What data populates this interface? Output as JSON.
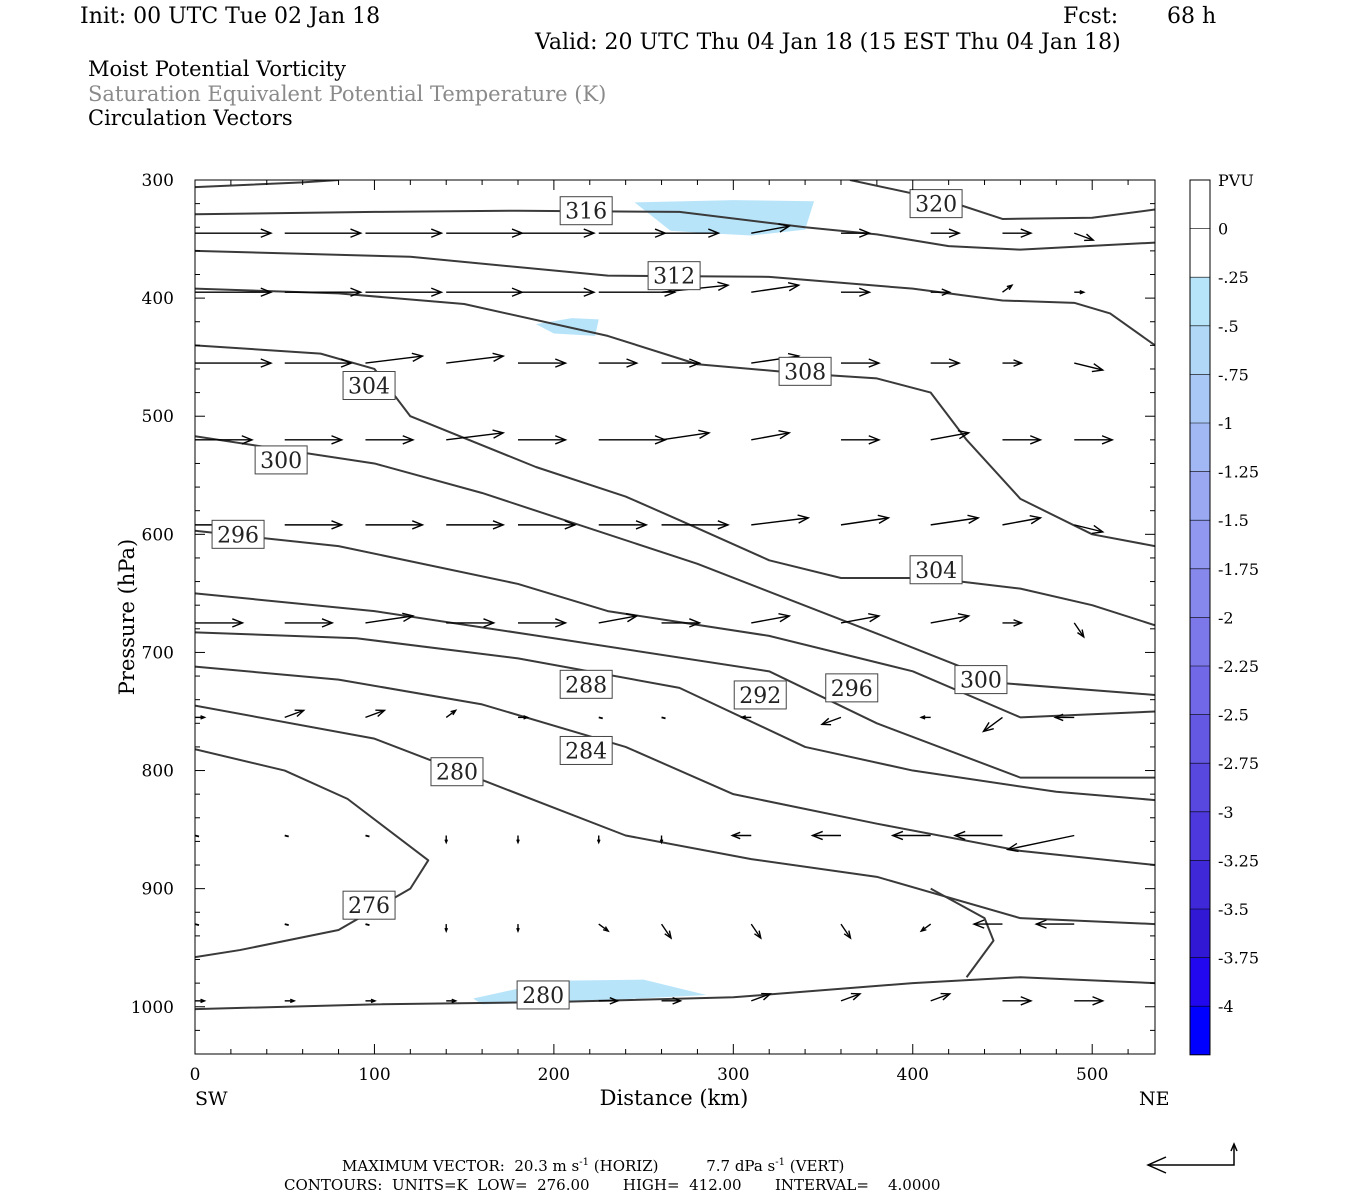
{
  "header": {
    "init": "Init: 00 UTC Tue 02 Jan 18",
    "fcst_label": "Fcst:",
    "fcst_value": "68 h",
    "valid": "Valid: 20 UTC Thu 04 Jan 18 (15 EST Thu 04 Jan 18)"
  },
  "titles": {
    "line1": "Moist Potential Vorticity",
    "line2": "Saturation Equivalent Potential Temperature (K)",
    "line3": "Circulation Vectors"
  },
  "colors": {
    "contour": "#3a3a3a",
    "title_gray": "#8a8a8a",
    "pv_fill": "#b8e4fa"
  },
  "chart_data": {
    "type": "cross-section",
    "xlabel": "Distance (km)",
    "ylabel": "Pressure (hPa)",
    "xlim": [
      0,
      535
    ],
    "ylim": [
      1040,
      300
    ],
    "x_ticks": [
      0,
      100,
      200,
      300,
      400,
      500
    ],
    "y_ticks": [
      300,
      400,
      500,
      600,
      700,
      800,
      900,
      1000
    ],
    "x_end_labels": {
      "left": "SW",
      "right": "NE"
    },
    "colorbar": {
      "unit": "PVU",
      "labels": [
        "0",
        "-.25",
        "-.5",
        "-.75",
        "-1",
        "-1.25",
        "-1.5",
        "-1.75",
        "-2",
        "-2.25",
        "-2.5",
        "-2.75",
        "-3",
        "-3.25",
        "-3.5",
        "-3.75",
        "-4"
      ],
      "colors": [
        "#ffffff",
        "#ffffff",
        "#b8e4fa",
        "#b2d8f8",
        "#aac8f6",
        "#a2b8f4",
        "#9aa8f2",
        "#9098ef",
        "#8688ec",
        "#7c78e9",
        "#7068e6",
        "#6458e3",
        "#5848e0",
        "#4c38dc",
        "#3e28d8",
        "#3018d4",
        "#2208ee",
        "#0000ff"
      ]
    },
    "contour_labels": [
      {
        "text": "316",
        "x": 218,
        "p": 326
      },
      {
        "text": "320",
        "x": 413,
        "p": 320
      },
      {
        "text": "312",
        "x": 267,
        "p": 381
      },
      {
        "text": "308",
        "x": 340,
        "p": 462
      },
      {
        "text": "304",
        "x": 97,
        "p": 474
      },
      {
        "text": "300",
        "x": 48,
        "p": 537
      },
      {
        "text": "296",
        "x": 24,
        "p": 600
      },
      {
        "text": "304",
        "x": 413,
        "p": 630
      },
      {
        "text": "300",
        "x": 438,
        "p": 723
      },
      {
        "text": "296",
        "x": 366,
        "p": 730
      },
      {
        "text": "292",
        "x": 315,
        "p": 736
      },
      {
        "text": "288",
        "x": 218,
        "p": 727
      },
      {
        "text": "284",
        "x": 218,
        "p": 783
      },
      {
        "text": "280",
        "x": 146,
        "p": 801
      },
      {
        "text": "276",
        "x": 97,
        "p": 914
      },
      {
        "text": "280",
        "x": 194,
        "p": 990
      }
    ],
    "contours": [
      [
        [
          0,
          306
        ],
        [
          60,
          302
        ],
        [
          80,
          300
        ]
      ],
      [
        [
          0,
          329
        ],
        [
          100,
          327
        ],
        [
          180,
          326
        ],
        [
          270,
          327
        ],
        [
          340,
          340
        ],
        [
          380,
          346
        ],
        [
          420,
          356
        ],
        [
          460,
          359
        ],
        [
          535,
          353
        ]
      ],
      [
        [
          365,
          300
        ],
        [
          420,
          318
        ],
        [
          450,
          333
        ],
        [
          500,
          332
        ],
        [
          535,
          325
        ]
      ],
      [
        [
          0,
          360
        ],
        [
          120,
          365
        ],
        [
          230,
          381
        ],
        [
          320,
          382
        ],
        [
          400,
          392
        ],
        [
          450,
          402
        ],
        [
          490,
          404
        ],
        [
          510,
          413
        ],
        [
          535,
          440
        ]
      ],
      [
        [
          0,
          392
        ],
        [
          80,
          396
        ],
        [
          150,
          405
        ],
        [
          230,
          432
        ],
        [
          280,
          456
        ],
        [
          340,
          464
        ],
        [
          380,
          468
        ],
        [
          410,
          480
        ],
        [
          430,
          520
        ],
        [
          460,
          570
        ],
        [
          500,
          600
        ],
        [
          535,
          610
        ]
      ],
      [
        [
          0,
          440
        ],
        [
          70,
          447
        ],
        [
          100,
          460
        ],
        [
          120,
          500
        ],
        [
          190,
          543
        ],
        [
          240,
          568
        ],
        [
          270,
          588
        ],
        [
          320,
          622
        ],
        [
          360,
          637
        ],
        [
          410,
          637
        ],
        [
          460,
          646
        ],
        [
          500,
          660
        ],
        [
          535,
          677
        ]
      ],
      [
        [
          0,
          517
        ],
        [
          100,
          540
        ],
        [
          160,
          565
        ],
        [
          280,
          625
        ],
        [
          380,
          684
        ],
        [
          450,
          726
        ],
        [
          535,
          736
        ]
      ],
      [
        [
          0,
          597
        ],
        [
          80,
          610
        ],
        [
          180,
          642
        ],
        [
          230,
          665
        ],
        [
          320,
          686
        ],
        [
          400,
          716
        ],
        [
          460,
          755
        ],
        [
          535,
          750
        ]
      ],
      [
        [
          0,
          650
        ],
        [
          100,
          665
        ],
        [
          200,
          688
        ],
        [
          320,
          716
        ],
        [
          380,
          760
        ],
        [
          460,
          806
        ],
        [
          535,
          806
        ]
      ],
      [
        [
          0,
          683
        ],
        [
          90,
          688
        ],
        [
          180,
          705
        ],
        [
          270,
          730
        ],
        [
          340,
          780
        ],
        [
          400,
          800
        ],
        [
          480,
          818
        ],
        [
          535,
          825
        ]
      ],
      [
        [
          0,
          712
        ],
        [
          80,
          723
        ],
        [
          160,
          744
        ],
        [
          240,
          780
        ],
        [
          300,
          820
        ],
        [
          380,
          845
        ],
        [
          460,
          868
        ],
        [
          535,
          880
        ]
      ],
      [
        [
          0,
          745
        ],
        [
          100,
          773
        ],
        [
          160,
          808
        ],
        [
          240,
          855
        ],
        [
          310,
          875
        ],
        [
          380,
          890
        ],
        [
          460,
          925
        ],
        [
          535,
          930
        ]
      ],
      [
        [
          0,
          782
        ],
        [
          50,
          800
        ],
        [
          85,
          824
        ],
        [
          130,
          876
        ],
        [
          120,
          900
        ],
        [
          80,
          935
        ],
        [
          25,
          952
        ],
        [
          0,
          958
        ]
      ],
      [
        [
          0,
          1002
        ],
        [
          100,
          998
        ],
        [
          200,
          996
        ],
        [
          300,
          992
        ],
        [
          400,
          980
        ],
        [
          460,
          975
        ],
        [
          535,
          980
        ]
      ],
      [
        [
          410,
          900
        ],
        [
          440,
          925
        ],
        [
          445,
          944
        ],
        [
          430,
          975
        ]
      ]
    ],
    "pv_regions": [
      [
        [
          245,
          319
        ],
        [
          300,
          317
        ],
        [
          345,
          318
        ],
        [
          340,
          342
        ],
        [
          310,
          347
        ],
        [
          285,
          345
        ],
        [
          265,
          343
        ]
      ],
      [
        [
          190,
          422
        ],
        [
          210,
          417
        ],
        [
          225,
          418
        ],
        [
          223,
          432
        ],
        [
          200,
          430
        ]
      ],
      [
        [
          155,
          993
        ],
        [
          200,
          978
        ],
        [
          250,
          977
        ],
        [
          285,
          990
        ],
        [
          210,
          996
        ],
        [
          160,
          998
        ]
      ]
    ],
    "vectors": [
      {
        "p": 345,
        "x": [
          0,
          50,
          95,
          140,
          180,
          225,
          260,
          310,
          360,
          410,
          450,
          490
        ],
        "u": [
          8,
          8,
          8,
          8,
          8,
          7,
          6,
          4,
          3,
          3,
          3,
          2
        ],
        "w": [
          0,
          0,
          0,
          0,
          0,
          0,
          0,
          -1,
          0,
          0,
          0,
          1
        ]
      },
      {
        "p": 395,
        "x": [
          0,
          50,
          95,
          140,
          180,
          225,
          260,
          310,
          360,
          410,
          450,
          490
        ],
        "u": [
          8,
          8,
          8,
          8,
          8,
          8,
          7,
          5,
          3,
          2,
          1,
          1
        ],
        "w": [
          0,
          0,
          0,
          0,
          0,
          0,
          -1,
          -1,
          0,
          0,
          -1,
          0
        ]
      },
      {
        "p": 455,
        "x": [
          0,
          50,
          95,
          140,
          180,
          225,
          260,
          310,
          360,
          410,
          450,
          490
        ],
        "u": [
          8,
          7,
          6,
          6,
          5,
          4,
          4,
          5,
          4,
          3,
          2,
          3
        ],
        "w": [
          0,
          0,
          -1,
          -1,
          0,
          0,
          0,
          -1,
          0,
          0,
          0,
          1
        ]
      },
      {
        "p": 520,
        "x": [
          0,
          50,
          95,
          140,
          180,
          225,
          260,
          310,
          360,
          410,
          450,
          490
        ],
        "u": [
          6,
          6,
          5,
          6,
          5,
          7,
          5,
          4,
          4,
          4,
          4,
          4
        ],
        "w": [
          0,
          0,
          0,
          -1,
          0,
          0,
          -1,
          -1,
          0,
          -1,
          0,
          0
        ]
      },
      {
        "p": 592,
        "x": [
          0,
          50,
          95,
          140,
          180,
          225,
          260,
          310,
          360,
          410,
          450,
          490
        ],
        "u": [
          6,
          6,
          6,
          6,
          6,
          5,
          7,
          6,
          5,
          5,
          4,
          3
        ],
        "w": [
          0,
          0,
          0,
          0,
          0,
          0,
          0,
          -1,
          -1,
          -1,
          -1,
          1
        ]
      },
      {
        "p": 675,
        "x": [
          0,
          50,
          95,
          140,
          180,
          225,
          260,
          310,
          360,
          410,
          450,
          490
        ],
        "u": [
          5,
          5,
          5,
          5,
          5,
          4,
          4,
          4,
          4,
          4,
          2,
          1
        ],
        "w": [
          0,
          0,
          -1,
          0,
          0,
          -1,
          0,
          -1,
          -1,
          -1,
          0,
          2
        ]
      },
      {
        "p": 755,
        "x": [
          0,
          50,
          95,
          140,
          180,
          225,
          260,
          310,
          360,
          410,
          450,
          490
        ],
        "u": [
          1,
          2,
          2,
          1,
          1,
          0,
          0,
          -1,
          -2,
          -1,
          -2,
          -2
        ],
        "w": [
          0,
          -1,
          -1,
          -1,
          0,
          0,
          0,
          0,
          1,
          0,
          2,
          0
        ]
      },
      {
        "p": 855,
        "x": [
          0,
          50,
          95,
          140,
          180,
          225,
          260,
          310,
          360,
          410,
          450,
          490
        ],
        "u": [
          0,
          0,
          0,
          0,
          0,
          0,
          0,
          -2,
          -3,
          -4,
          -5,
          -7
        ],
        "w": [
          0,
          0,
          0,
          1,
          1,
          1,
          1,
          0,
          0,
          0,
          0,
          2
        ]
      },
      {
        "p": 930,
        "x": [
          0,
          50,
          95,
          140,
          180,
          225,
          260,
          310,
          360,
          410,
          450,
          490
        ],
        "u": [
          0,
          0,
          0,
          0,
          0,
          1,
          1,
          1,
          1,
          -1,
          -3,
          -4
        ],
        "w": [
          0,
          0,
          0,
          1,
          1,
          1,
          2,
          2,
          2,
          1,
          0,
          0
        ]
      },
      {
        "p": 995,
        "x": [
          0,
          50,
          95,
          140,
          180,
          225,
          260,
          310,
          360,
          410,
          450,
          490
        ],
        "u": [
          1,
          1,
          1,
          1,
          2,
          2,
          2,
          2,
          2,
          2,
          3,
          3
        ],
        "w": [
          0,
          0,
          0,
          0,
          0,
          0,
          0,
          -1,
          -1,
          -1,
          0,
          0
        ]
      }
    ]
  },
  "footer": {
    "max_vector_label": "MAXIMUM VECTOR:",
    "max_vector_horiz": "20.3 m s",
    "max_vector_horiz_sup": "-1",
    "max_vector_horiz_tag": "(HORIZ)",
    "max_vector_vert": "7.7 dPa s",
    "max_vector_vert_sup": "-1",
    "max_vector_vert_tag": "(VERT)",
    "contours_line": "CONTOURS:  UNITS=K  LOW=  276.00       HIGH=  412.00       INTERVAL=    4.0000"
  }
}
